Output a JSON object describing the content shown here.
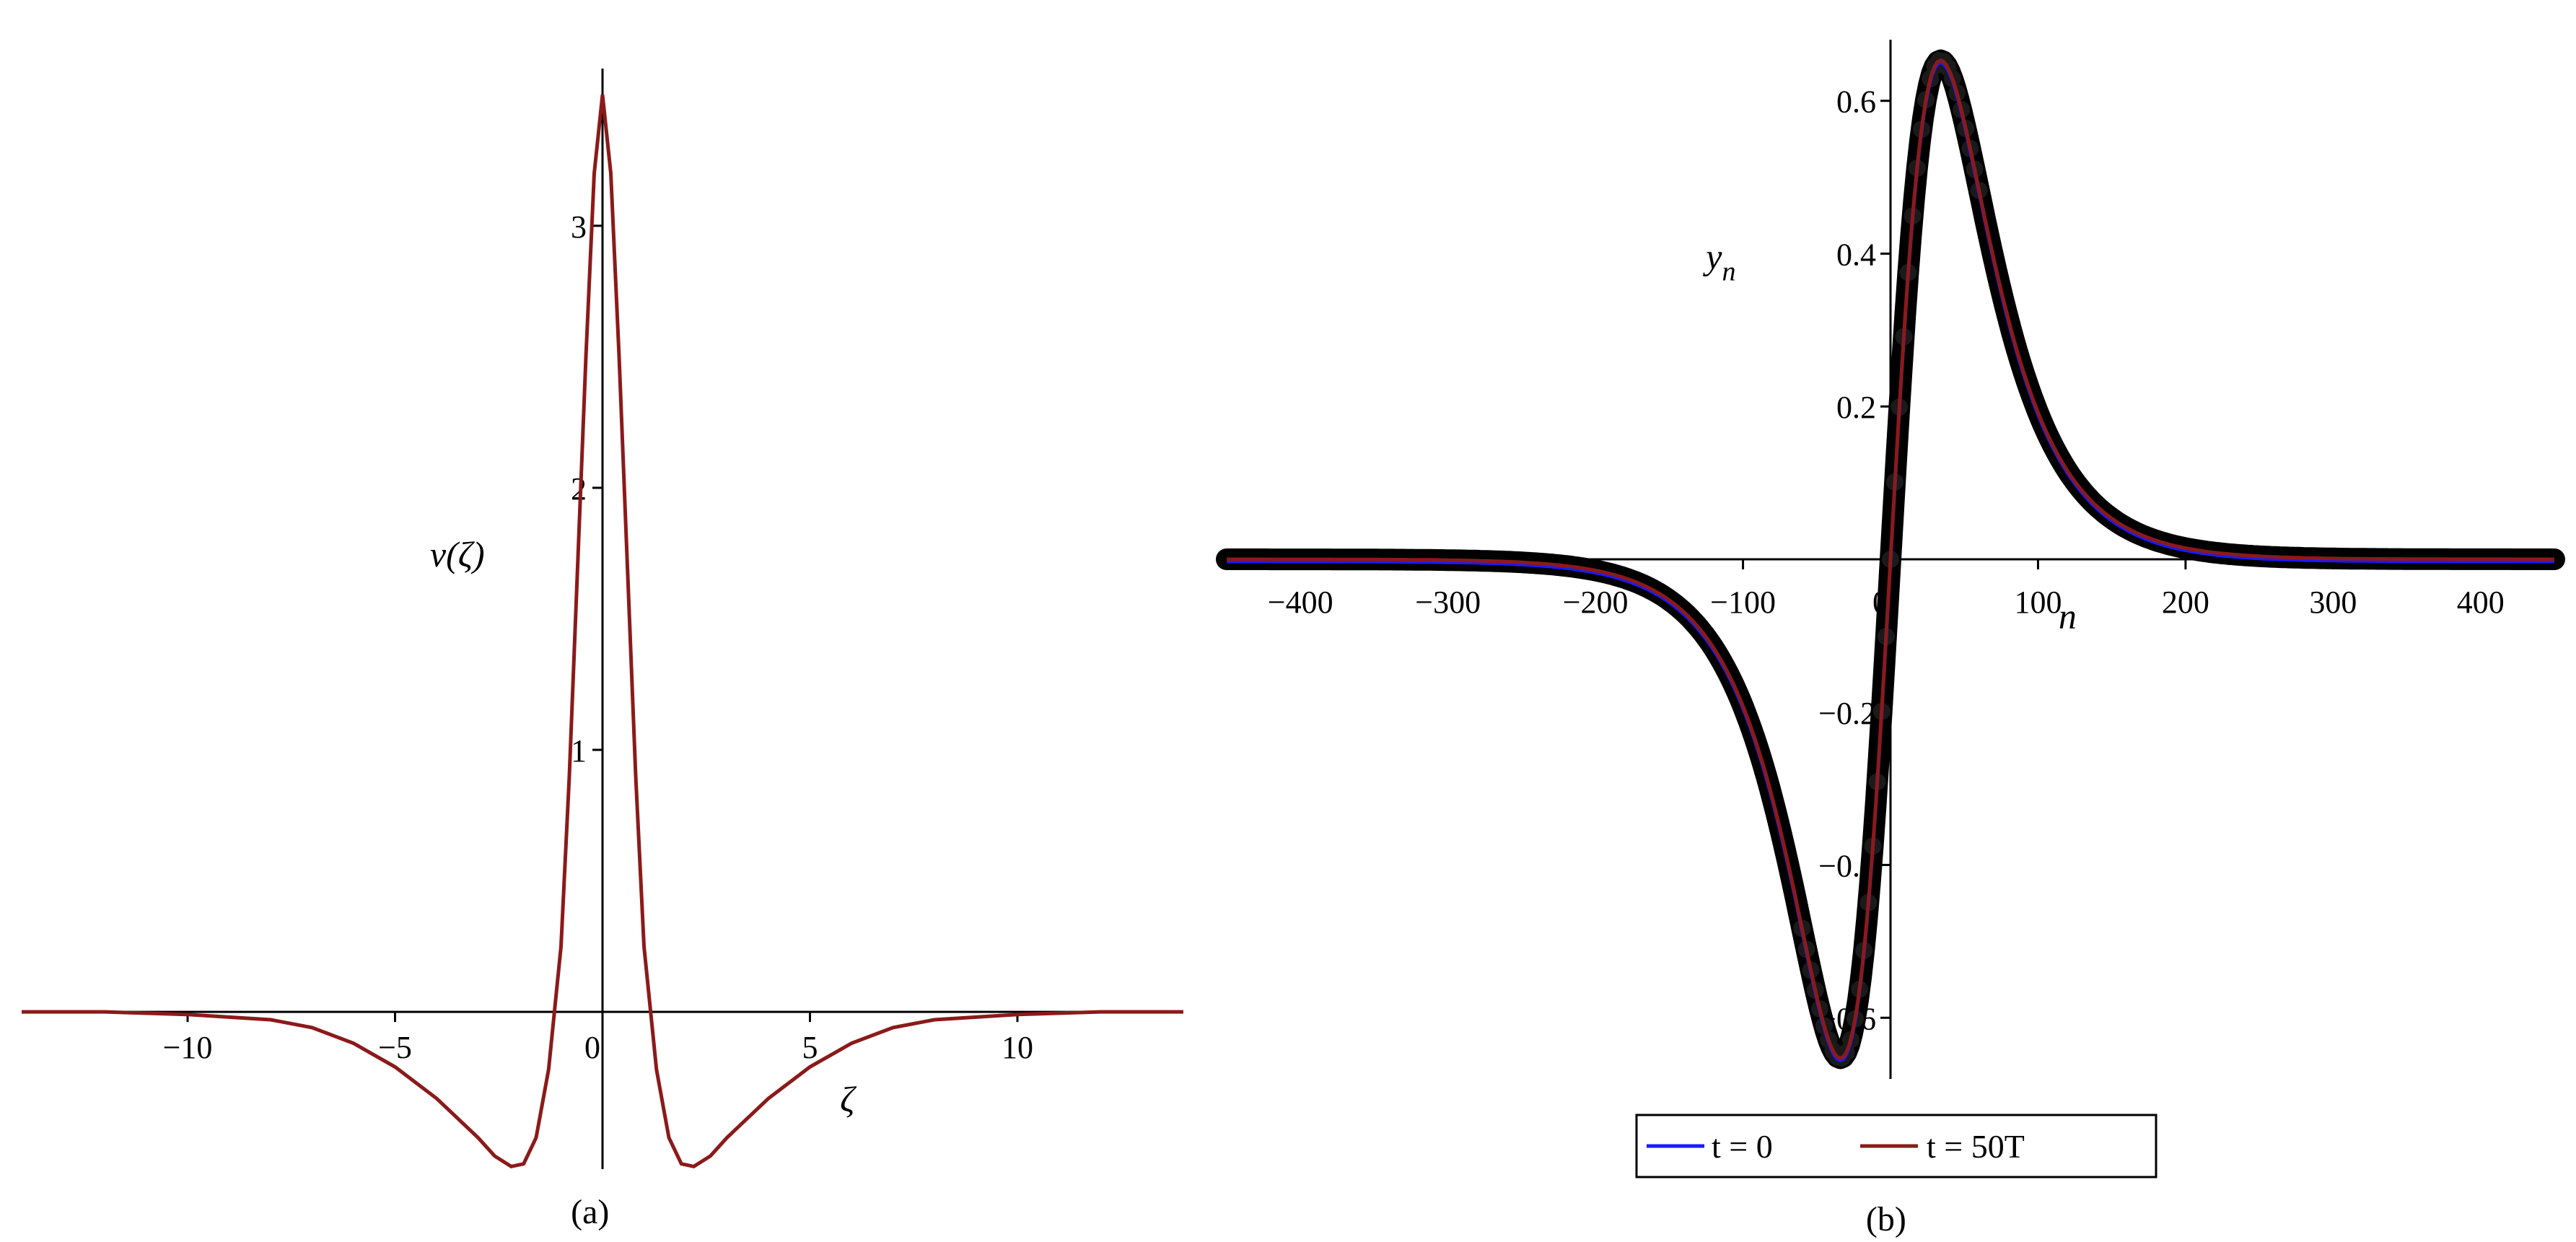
{
  "chart_data": [
    {
      "type": "line",
      "caption": "(a)",
      "xlabel": "ζ",
      "ylabel": "v(ζ)",
      "xlim": [
        -14,
        14
      ],
      "ylim": [
        -0.6,
        3.6
      ],
      "xticks": [
        -10,
        -5,
        0,
        5,
        10
      ],
      "yticks": [
        1,
        2,
        3
      ],
      "color": "#8b1a1a",
      "grid": false,
      "series": [
        {
          "x": [
            -14,
            -12,
            -10,
            -9,
            -8,
            -7,
            -6,
            -5,
            -4,
            -3,
            -2.6,
            -2.2,
            -1.9,
            -1.6,
            -1.3,
            -1.0,
            -0.8,
            -0.6,
            -0.4,
            -0.2,
            0,
            0.2,
            0.4,
            0.6,
            0.8,
            1.0,
            1.3,
            1.6,
            1.9,
            2.2,
            2.6,
            3,
            4,
            5,
            6,
            7,
            8,
            9,
            10,
            12,
            14
          ],
          "y": [
            0,
            0,
            -0.01,
            -0.02,
            -0.03,
            -0.06,
            -0.12,
            -0.21,
            -0.33,
            -0.48,
            -0.55,
            -0.59,
            -0.58,
            -0.48,
            -0.22,
            0.25,
            0.9,
            1.7,
            2.5,
            3.2,
            3.5,
            3.2,
            2.5,
            1.7,
            0.9,
            0.25,
            -0.22,
            -0.48,
            -0.58,
            -0.59,
            -0.55,
            -0.48,
            -0.33,
            -0.21,
            -0.12,
            -0.06,
            -0.03,
            -0.02,
            -0.01,
            0,
            0
          ]
        }
      ]
    },
    {
      "type": "line",
      "caption": "(b)",
      "xlabel": "n",
      "ylabel": "y",
      "ylabel_sub": "n",
      "xlim": [
        -450,
        450
      ],
      "ylim": [
        -0.68,
        0.68
      ],
      "xticks": [
        -400,
        -300,
        -200,
        -100,
        0,
        100,
        200,
        300,
        400
      ],
      "yticks": [
        -0.6,
        -0.4,
        -0.2,
        0.2,
        0.4,
        0.6
      ],
      "ytick_labels": [
        "-0.6",
        "-0.4",
        "-0.2",
        "0.2",
        "0.4",
        "0.6"
      ],
      "xtick_labels": [
        "-400",
        "-300",
        "-200",
        "-100",
        "0",
        "100",
        "200",
        "300",
        "400"
      ],
      "grid": false,
      "legend_position": "bottom",
      "series": [
        {
          "name": "t = 0",
          "color": "#1a1aff",
          "amplitude": 0.653,
          "peak_n": 34
        },
        {
          "name": "t = 50T",
          "color": "#8b1a1a",
          "amplitude": 0.653,
          "peak_n": 34
        }
      ],
      "marker_color": "#000000"
    }
  ]
}
